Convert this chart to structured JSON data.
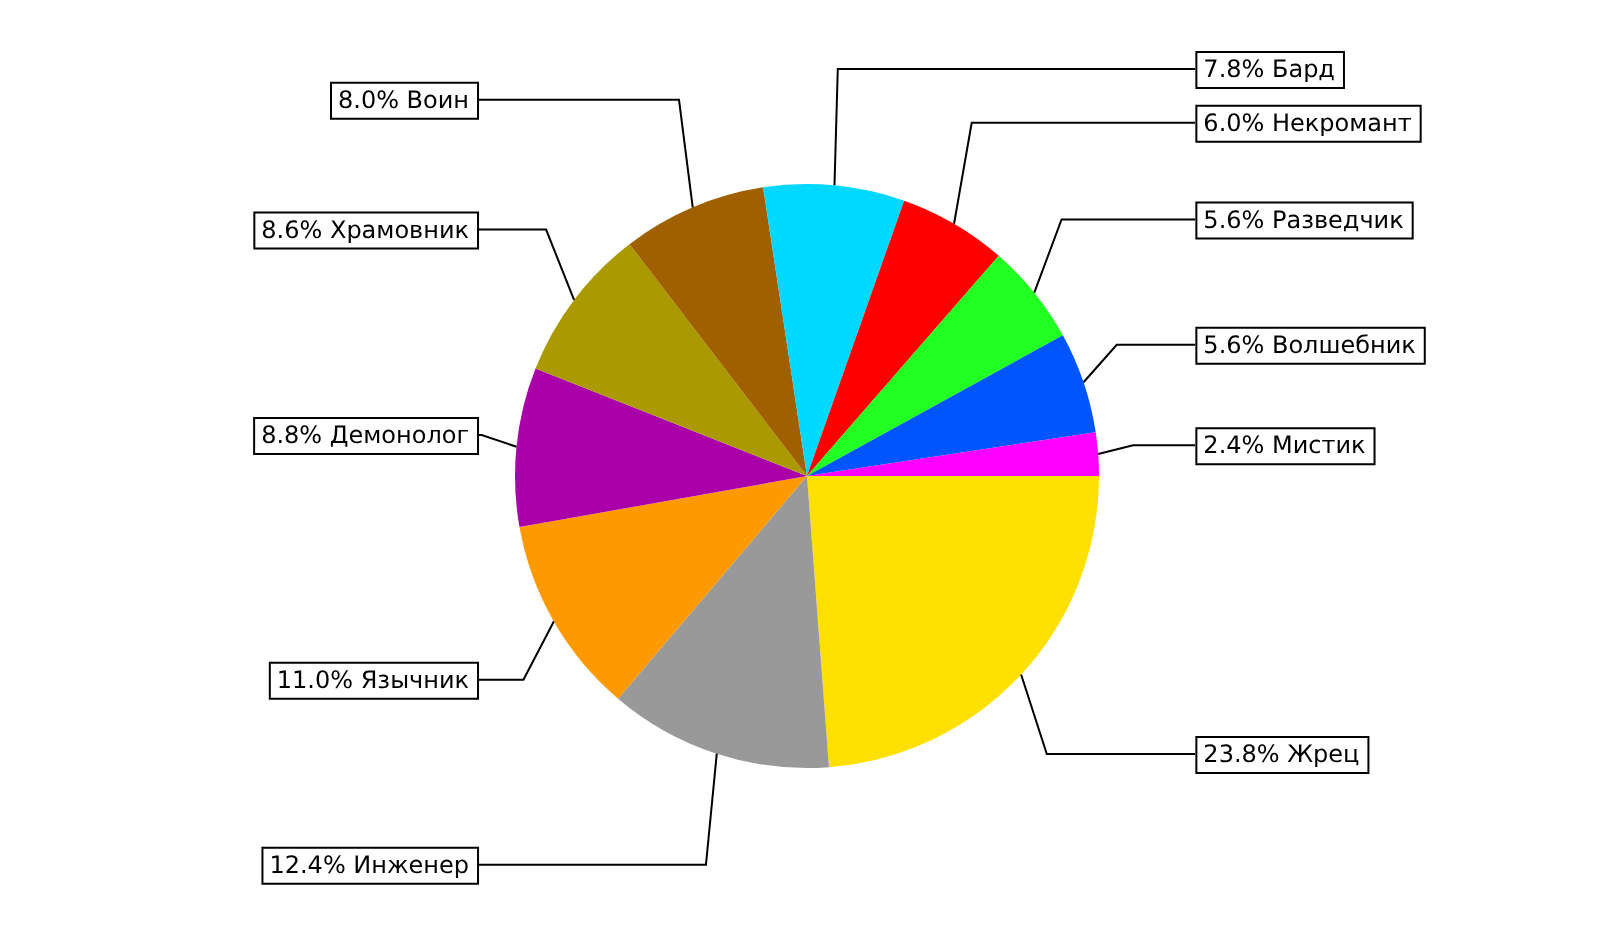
{
  "chart_data": {
    "type": "pie",
    "categories": [
      "Жрец",
      "Инженер",
      "Язычник",
      "Демонолог",
      "Храмовник",
      "Воин",
      "Бард",
      "Некромант",
      "Разведчик",
      "Волшебник",
      "Мистик"
    ],
    "values": [
      23.8,
      12.4,
      11.0,
      8.8,
      8.6,
      8.0,
      7.8,
      6.0,
      5.6,
      5.6,
      2.4
    ],
    "value_labels": [
      "23.8%",
      "12.4%",
      "11.0%",
      "8.8%",
      "8.6%",
      "8.0%",
      "7.8%",
      "6.0%",
      "5.6%",
      "5.6%",
      "2.4%"
    ],
    "colors": [
      "#ffe000",
      "#999999",
      "#ff9900",
      "#aa00aa",
      "#aa9900",
      "#a06000",
      "#00d8ff",
      "#ff0000",
      "#22ff22",
      "#0055ff",
      "#ff00ff"
    ],
    "legend": false
  }
}
